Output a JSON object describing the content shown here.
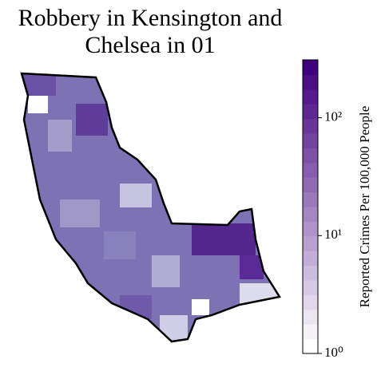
{
  "chart_data": {
    "type": "choropleth",
    "title": "Robbery in Kensington and Chelsea in 01",
    "colorbar": {
      "label": "Reported Crimes Per 100,000 People",
      "log_scale": true,
      "ylim": [
        1,
        310
      ],
      "yticks": [
        {
          "value": 1,
          "label": "10⁰"
        },
        {
          "value": 10,
          "label": "10¹"
        },
        {
          "value": 100,
          "label": "10²"
        }
      ],
      "colors": [
        "#ffffff",
        "#3f007d"
      ],
      "levels": 20
    }
  }
}
